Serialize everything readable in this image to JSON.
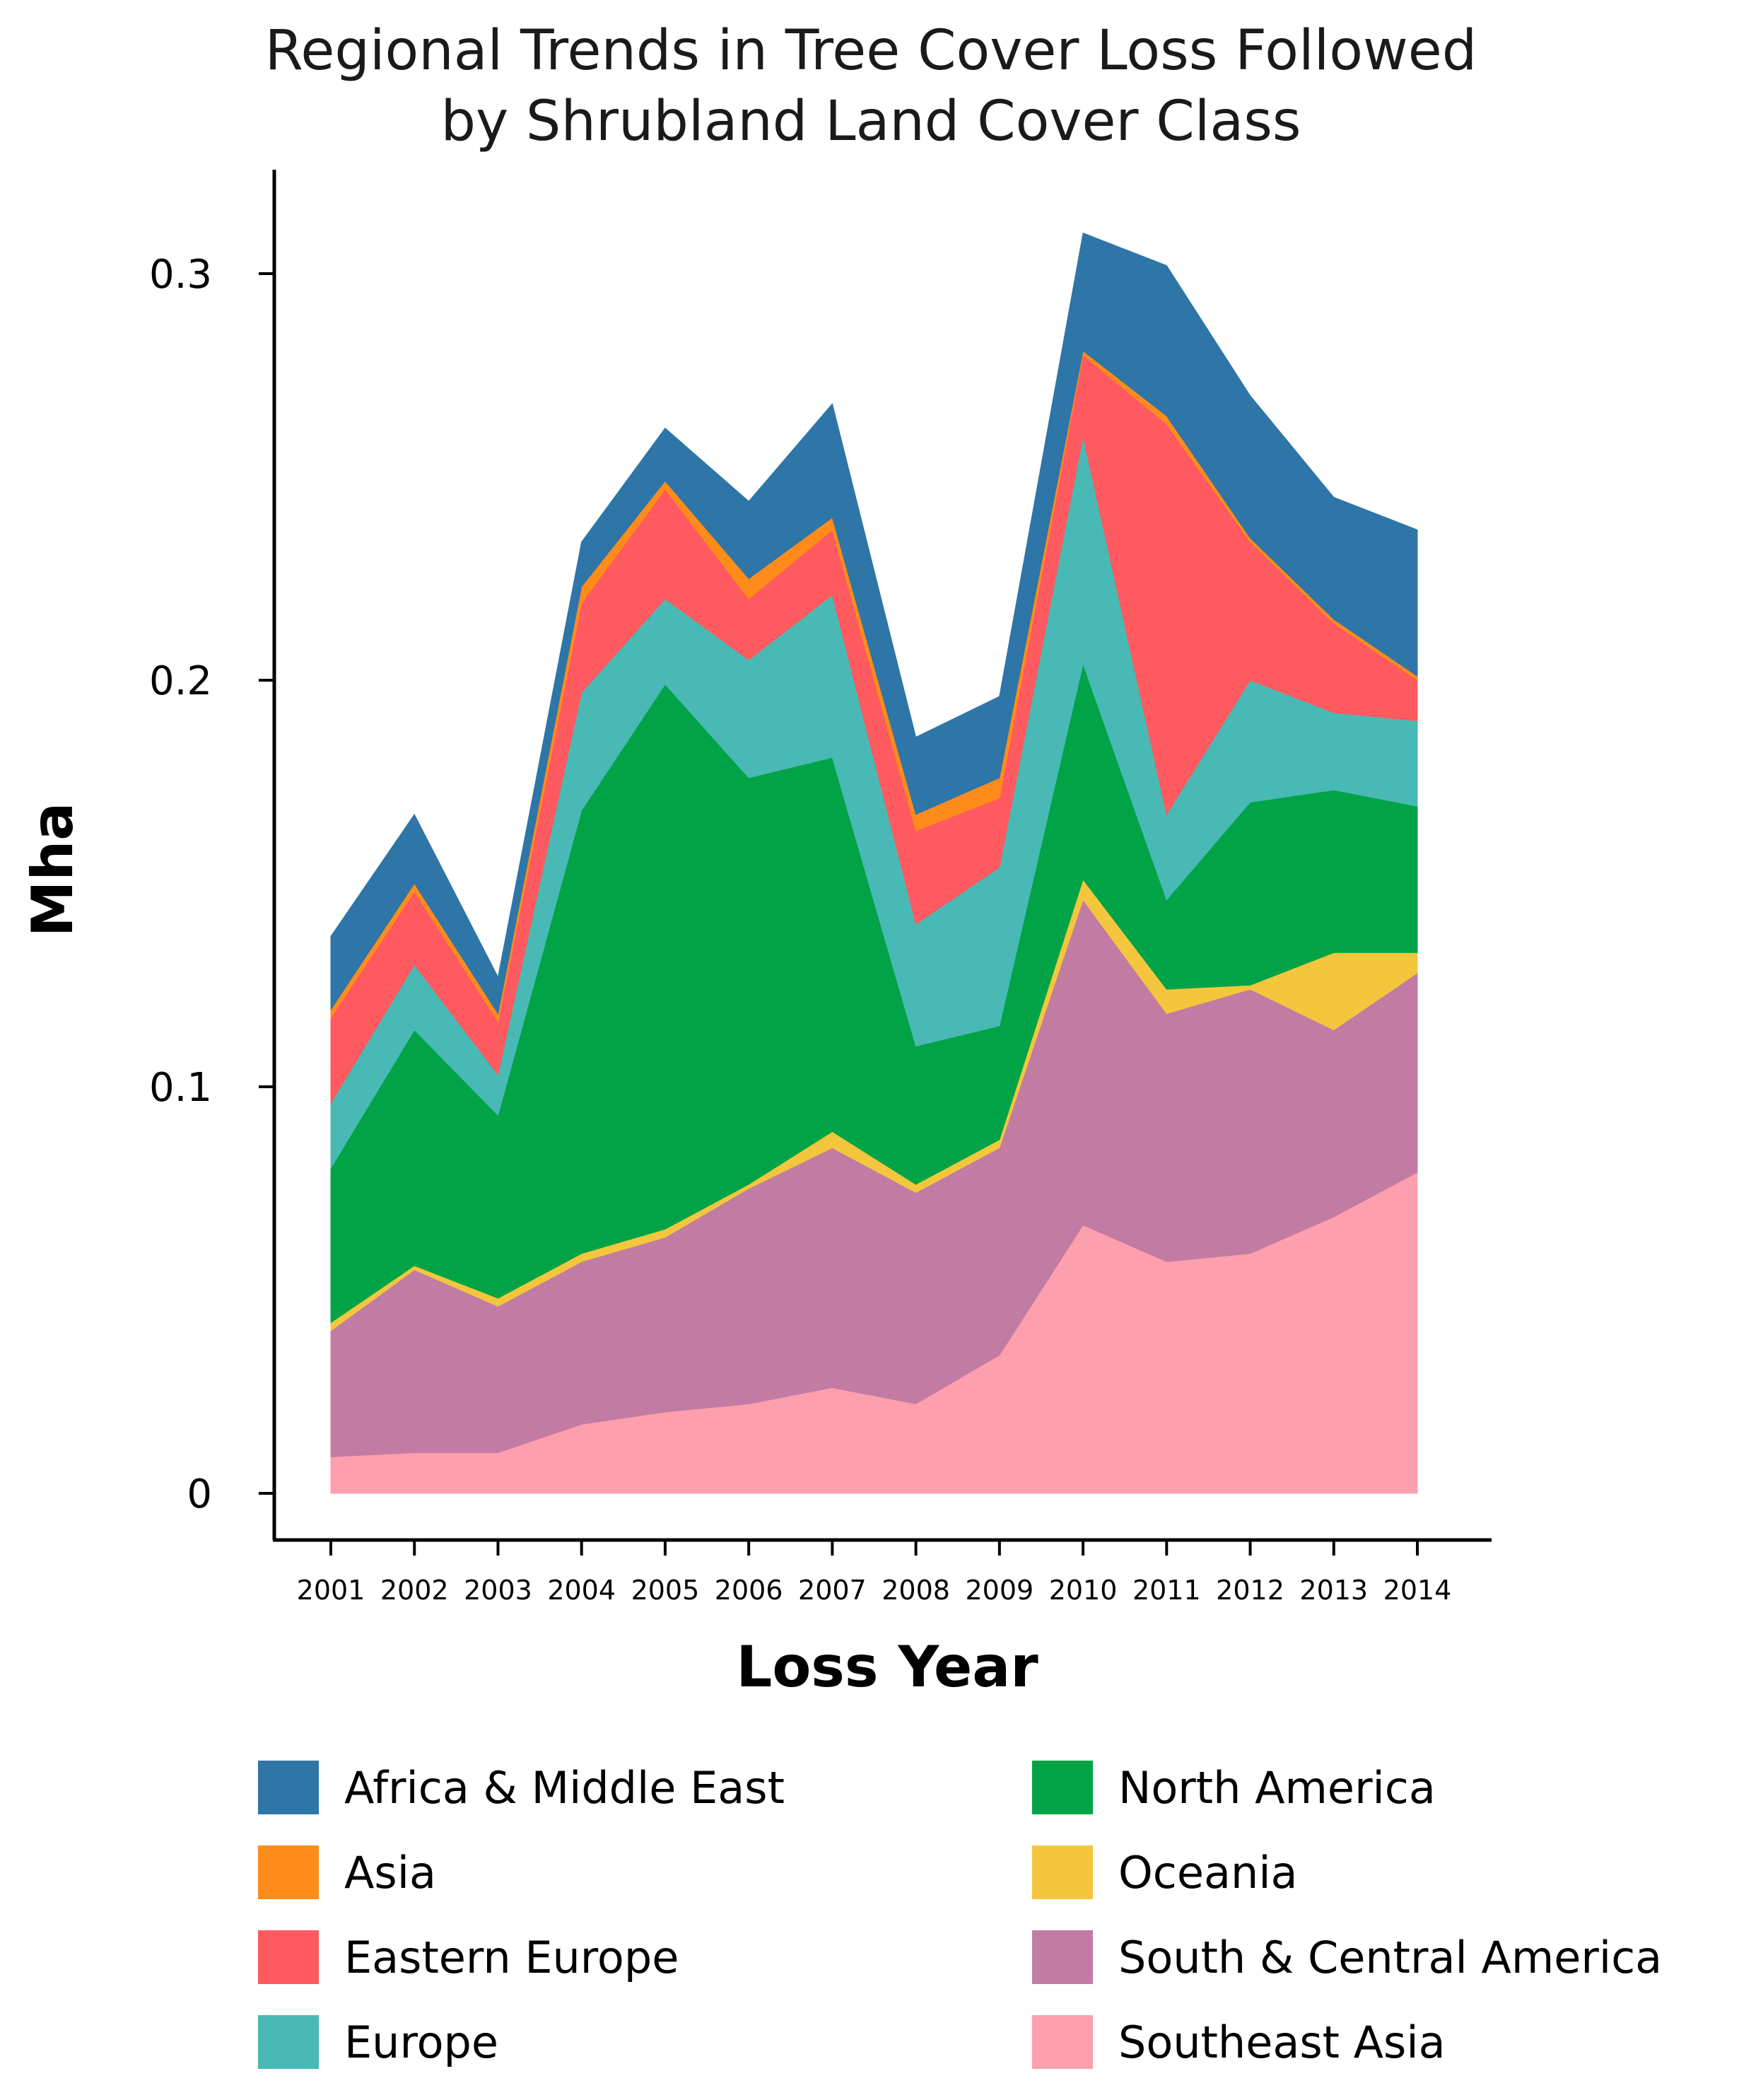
{
  "chart_data": {
    "type": "area",
    "stacked": true,
    "title_lines": [
      "Regional Trends in Tree Cover Loss Followed",
      "by Shrubland Land Cover Class"
    ],
    "xlabel": "Loss Year",
    "ylabel": "Mha",
    "ylim": [
      0,
      0.32
    ],
    "yticks": [
      {
        "value": 0,
        "label": "0"
      },
      {
        "value": 0.1,
        "label": "0.1"
      },
      {
        "value": 0.2,
        "label": "0.2"
      },
      {
        "value": 0.3,
        "label": "0.3"
      }
    ],
    "x": [
      "2001",
      "2002",
      "2003",
      "2004",
      "2005",
      "2006",
      "2007",
      "2008",
      "2009",
      "2010",
      "2011",
      "2012",
      "2013",
      "2014"
    ],
    "grid": false,
    "legend_position": "bottom",
    "legend_layout": "two-columns",
    "series": [
      {
        "name": "Southeast Asia",
        "color": "#fe9fad",
        "values": [
          0.009,
          0.01,
          0.01,
          0.017,
          0.02,
          0.022,
          0.026,
          0.022,
          0.034,
          0.066,
          0.057,
          0.059,
          0.068,
          0.079
        ]
      },
      {
        "name": "South & Central America",
        "color": "#c27ba2",
        "values": [
          0.031,
          0.045,
          0.036,
          0.04,
          0.043,
          0.053,
          0.059,
          0.052,
          0.051,
          0.08,
          0.061,
          0.065,
          0.046,
          0.049
        ]
      },
      {
        "name": "Oceania",
        "color": "#f4c63d",
        "values": [
          0.002,
          0.001,
          0.002,
          0.002,
          0.002,
          0.001,
          0.004,
          0.002,
          0.002,
          0.005,
          0.006,
          0.001,
          0.019,
          0.005
        ]
      },
      {
        "name": "North America",
        "color": "#00a346",
        "values": [
          0.038,
          0.058,
          0.045,
          0.109,
          0.134,
          0.1,
          0.092,
          0.034,
          0.028,
          0.053,
          0.022,
          0.045,
          0.04,
          0.036
        ]
      },
      {
        "name": "Europe",
        "color": "#49b9b5",
        "values": [
          0.016,
          0.016,
          0.01,
          0.029,
          0.021,
          0.029,
          0.04,
          0.03,
          0.039,
          0.056,
          0.021,
          0.03,
          0.019,
          0.021
        ]
      },
      {
        "name": "Eastern Europe",
        "color": "#ff5a5f",
        "values": [
          0.021,
          0.018,
          0.013,
          0.022,
          0.027,
          0.015,
          0.016,
          0.023,
          0.017,
          0.02,
          0.096,
          0.034,
          0.022,
          0.01
        ]
      },
      {
        "name": "Asia",
        "color": "#ff8c1a",
        "values": [
          0.002,
          0.002,
          0.002,
          0.004,
          0.002,
          0.005,
          0.003,
          0.004,
          0.005,
          0.001,
          0.002,
          0.001,
          0.001,
          0.001
        ]
      },
      {
        "name": "Africa & Middle East",
        "color": "#2e75a8",
        "values": [
          0.018,
          0.017,
          0.009,
          0.011,
          0.013,
          0.019,
          0.028,
          0.019,
          0.02,
          0.029,
          0.037,
          0.035,
          0.03,
          0.036
        ]
      }
    ],
    "legend_order": [
      "Africa & Middle East",
      "Asia",
      "Eastern Europe",
      "Europe",
      "North America",
      "Oceania",
      "South & Central America",
      "Southeast Asia"
    ]
  }
}
